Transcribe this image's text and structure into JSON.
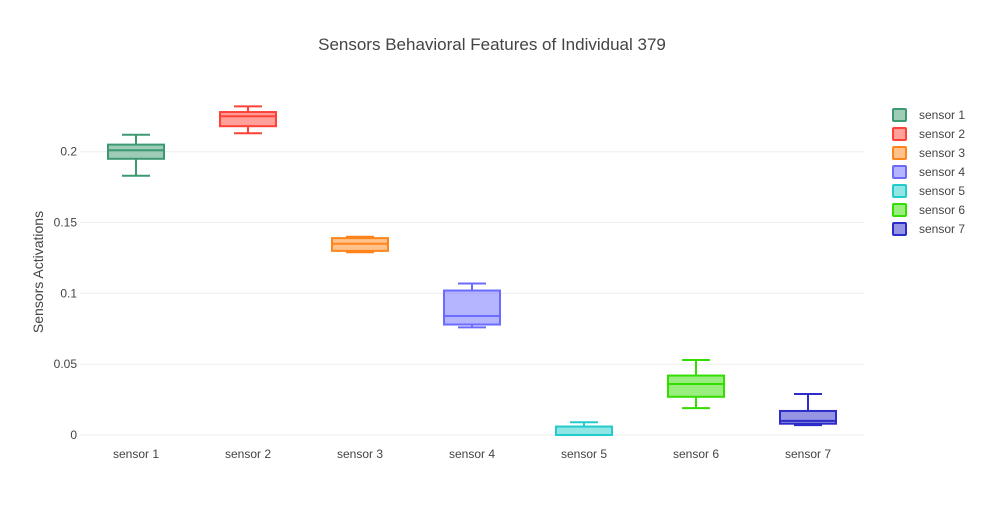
{
  "chart_data": {
    "type": "box",
    "title": "Sensors Behavioral Features of Individual 379",
    "xlabel": "",
    "ylabel": "Sensors Activations",
    "ylim": [
      -0.0035,
      0.2365
    ],
    "yticks": [
      {
        "value": 0,
        "label": "0"
      },
      {
        "value": 0.05,
        "label": "0.05"
      },
      {
        "value": 0.1,
        "label": "0.1"
      },
      {
        "value": 0.15,
        "label": "0.15"
      },
      {
        "value": 0.2,
        "label": "0.2"
      }
    ],
    "grid": true,
    "legend_position": "right",
    "series": [
      {
        "name": "sensor 1",
        "color": "#3d9970",
        "min": 0.183,
        "q1": 0.195,
        "median": 0.201,
        "q3": 0.205,
        "max": 0.212
      },
      {
        "name": "sensor 2",
        "color": "#ff4136",
        "min": 0.213,
        "q1": 0.218,
        "median": 0.225,
        "q3": 0.228,
        "max": 0.232
      },
      {
        "name": "sensor 3",
        "color": "#ff851b",
        "min": 0.129,
        "q1": 0.13,
        "median": 0.135,
        "q3": 0.139,
        "max": 0.14
      },
      {
        "name": "sensor 4",
        "color": "#6b6bff",
        "min": 0.076,
        "q1": 0.078,
        "median": 0.084,
        "q3": 0.102,
        "max": 0.107
      },
      {
        "name": "sensor 5",
        "color": "#22cccc",
        "min": 0.0,
        "q1": 0.0,
        "median": 0.0,
        "q3": 0.006,
        "max": 0.009
      },
      {
        "name": "sensor 6",
        "color": "#33dd00",
        "min": 0.019,
        "q1": 0.027,
        "median": 0.036,
        "q3": 0.042,
        "max": 0.053
      },
      {
        "name": "sensor 7",
        "color": "#2c2cc8",
        "min": 0.007,
        "q1": 0.008,
        "median": 0.01,
        "q3": 0.017,
        "max": 0.029
      }
    ]
  }
}
